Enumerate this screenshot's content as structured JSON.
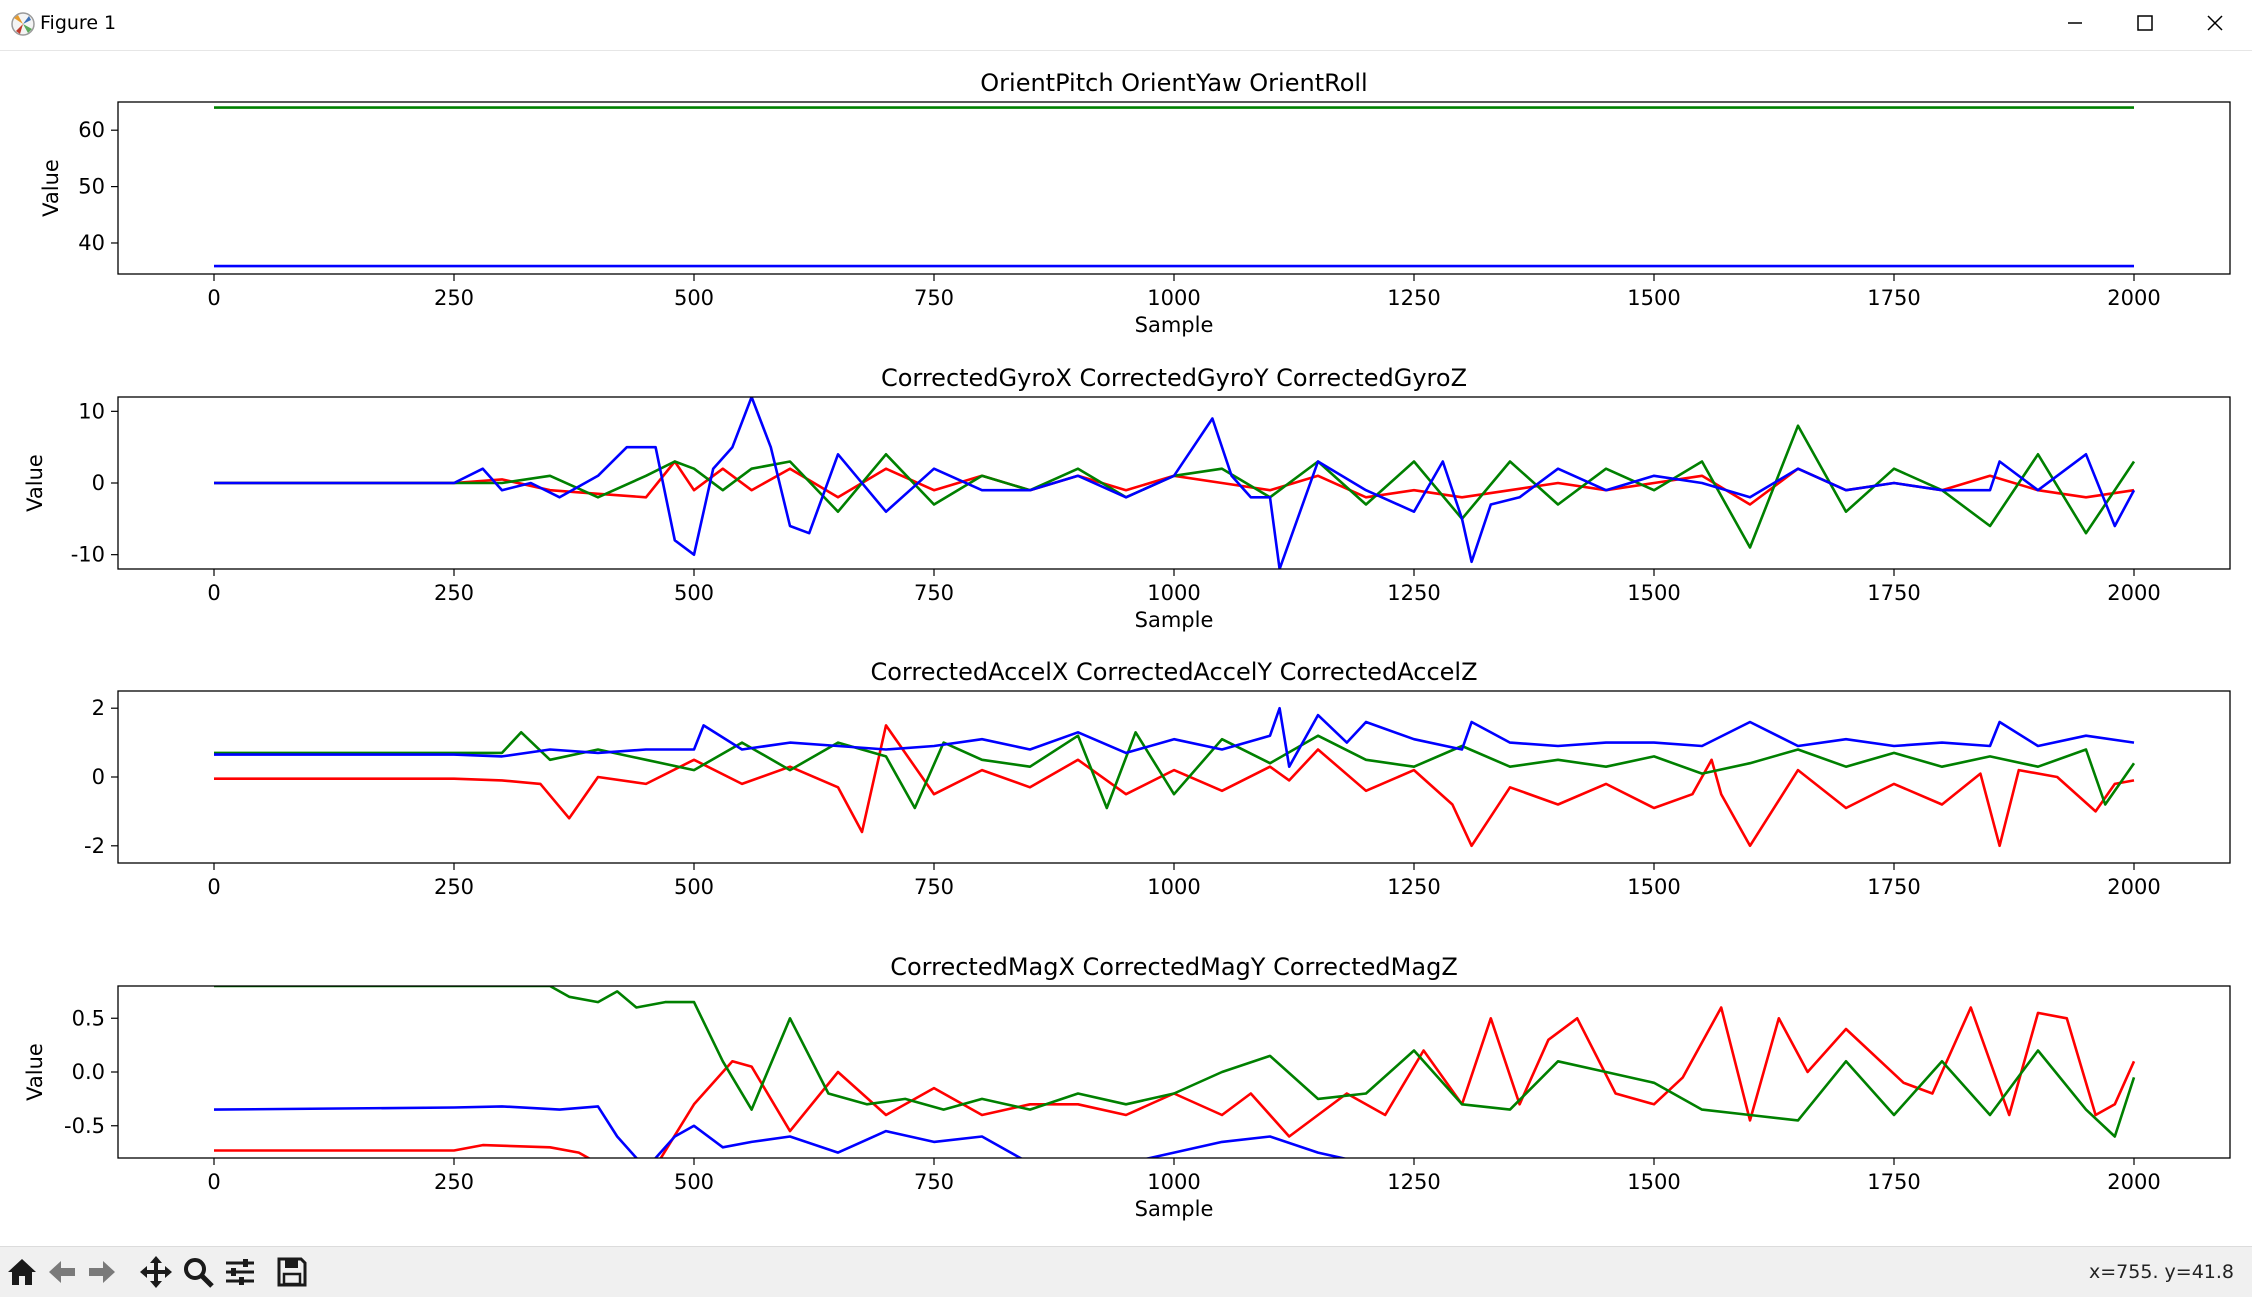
{
  "window": {
    "title": "Figure 1",
    "icon": "matplotlib-logo-icon"
  },
  "toolbar": {
    "tools": [
      "home-icon",
      "back-arrow-icon",
      "forward-arrow-icon",
      "pan-move-icon",
      "zoom-magnifier-icon",
      "configure-subplots-icon",
      "save-floppy-icon"
    ],
    "coordinates": "x=755. y=41.8"
  },
  "colors": {
    "series1": "#ff0000",
    "series2": "#008000",
    "series3": "#0000ff"
  },
  "chart_data": [
    {
      "type": "line",
      "title": "OrientPitch OrientYaw OrientRoll",
      "xlabel": "Sample",
      "ylabel": "Value",
      "xlim": [
        -100,
        2100
      ],
      "ylim": [
        34.5,
        65
      ],
      "xticks": [
        0,
        250,
        500,
        750,
        1000,
        1250,
        1500,
        1750,
        2000
      ],
      "yticks": [
        40,
        50,
        60
      ],
      "series": [
        {
          "color": "#008000",
          "x": [
            0,
            2000
          ],
          "y": [
            64,
            64
          ]
        },
        {
          "color": "#0000ff",
          "x": [
            0,
            2000
          ],
          "y": [
            35.9,
            35.9
          ]
        }
      ]
    },
    {
      "type": "line",
      "title": "CorrectedGyroX CorrectedGyroY CorrectedGyroZ",
      "xlabel": "Sample",
      "ylabel": "Value",
      "xlim": [
        -100,
        2100
      ],
      "ylim": [
        -12,
        12
      ],
      "xticks": [
        0,
        250,
        500,
        750,
        1000,
        1250,
        1500,
        1750,
        2000
      ],
      "yticks": [
        -10,
        0,
        10
      ],
      "series": [
        {
          "color": "#ff0000",
          "x": [
            0,
            250,
            300,
            350,
            400,
            450,
            480,
            500,
            530,
            560,
            600,
            650,
            700,
            750,
            800,
            850,
            900,
            950,
            1000,
            1050,
            1100,
            1150,
            1200,
            1250,
            1300,
            1350,
            1400,
            1450,
            1500,
            1550,
            1600,
            1650,
            1700,
            1750,
            1800,
            1850,
            1900,
            1950,
            2000
          ],
          "y": [
            0,
            0,
            0.5,
            -1,
            -1.5,
            -2,
            3,
            -1,
            2,
            -1,
            2,
            -2,
            2,
            -1,
            1,
            -1,
            1,
            -1,
            1,
            0,
            -1,
            1,
            -2,
            -1,
            -2,
            -1,
            0,
            -1,
            0,
            1,
            -3,
            2,
            -1,
            0,
            -1,
            1,
            -1,
            -2,
            -1
          ]
        },
        {
          "color": "#008000",
          "x": [
            0,
            250,
            300,
            350,
            400,
            450,
            480,
            500,
            530,
            560,
            600,
            650,
            700,
            750,
            800,
            850,
            900,
            950,
            1000,
            1050,
            1100,
            1150,
            1200,
            1250,
            1300,
            1350,
            1400,
            1450,
            1500,
            1550,
            1600,
            1650,
            1700,
            1750,
            1800,
            1850,
            1900,
            1950,
            2000
          ],
          "y": [
            0,
            0,
            0,
            1,
            -2,
            1,
            3,
            2,
            -1,
            2,
            3,
            -4,
            4,
            -3,
            1,
            -1,
            2,
            -2,
            1,
            2,
            -2,
            3,
            -3,
            3,
            -5,
            3,
            -3,
            2,
            -1,
            3,
            -9,
            8,
            -4,
            2,
            -1,
            -6,
            4,
            -7,
            3
          ]
        },
        {
          "color": "#0000ff",
          "x": [
            0,
            250,
            280,
            300,
            330,
            360,
            400,
            430,
            460,
            480,
            500,
            520,
            540,
            560,
            580,
            600,
            620,
            650,
            700,
            750,
            800,
            850,
            900,
            950,
            1000,
            1040,
            1060,
            1080,
            1100,
            1110,
            1150,
            1200,
            1250,
            1280,
            1300,
            1310,
            1330,
            1360,
            1400,
            1450,
            1500,
            1550,
            1600,
            1650,
            1700,
            1750,
            1800,
            1850,
            1860,
            1900,
            1950,
            1980,
            2000
          ],
          "y": [
            0,
            0,
            2,
            -1,
            0,
            -2,
            1,
            5,
            5,
            -8,
            -10,
            2,
            5,
            12,
            5,
            -6,
            -7,
            4,
            -4,
            2,
            -1,
            -1,
            1,
            -2,
            1,
            9,
            1,
            -2,
            -2,
            -12,
            3,
            -1,
            -4,
            3,
            -5,
            -11,
            -3,
            -2,
            2,
            -1,
            1,
            0,
            -2,
            2,
            -1,
            0,
            -1,
            -1,
            3,
            -1,
            4,
            -6,
            -1
          ]
        }
      ]
    },
    {
      "type": "line",
      "title": "CorrectedAccelX CorrectedAccelY CorrectedAccelZ",
      "xlabel": "",
      "ylabel": "",
      "xlim": [
        -100,
        2100
      ],
      "ylim": [
        -2.5,
        2.5
      ],
      "xticks": [
        0,
        250,
        500,
        750,
        1000,
        1250,
        1500,
        1750,
        2000
      ],
      "yticks": [
        -2,
        0,
        2
      ],
      "series": [
        {
          "color": "#ff0000",
          "x": [
            0,
            250,
            300,
            340,
            370,
            400,
            450,
            500,
            550,
            600,
            650,
            675,
            700,
            750,
            800,
            850,
            900,
            950,
            1000,
            1050,
            1100,
            1120,
            1150,
            1200,
            1250,
            1290,
            1310,
            1350,
            1400,
            1450,
            1500,
            1540,
            1560,
            1570,
            1600,
            1650,
            1700,
            1750,
            1800,
            1840,
            1860,
            1880,
            1920,
            1960,
            1980,
            2000
          ],
          "y": [
            -0.05,
            -0.05,
            -0.1,
            -0.2,
            -1.2,
            0,
            -0.2,
            0.5,
            -0.2,
            0.3,
            -0.3,
            -1.6,
            1.5,
            -0.5,
            0.2,
            -0.3,
            0.5,
            -0.5,
            0.2,
            -0.4,
            0.3,
            -0.1,
            0.8,
            -0.4,
            0.2,
            -0.8,
            -2,
            -0.3,
            -0.8,
            -0.2,
            -0.9,
            -0.5,
            0.5,
            -0.5,
            -2,
            0.2,
            -0.9,
            -0.2,
            -0.8,
            0.1,
            -2,
            0.2,
            0,
            -1,
            -0.2,
            -0.1
          ]
        },
        {
          "color": "#008000",
          "x": [
            0,
            250,
            300,
            320,
            350,
            400,
            450,
            500,
            550,
            600,
            650,
            700,
            730,
            760,
            800,
            850,
            900,
            930,
            960,
            1000,
            1050,
            1100,
            1150,
            1200,
            1250,
            1300,
            1350,
            1400,
            1450,
            1500,
            1550,
            1600,
            1650,
            1700,
            1750,
            1800,
            1850,
            1900,
            1950,
            1970,
            2000
          ],
          "y": [
            0.7,
            0.7,
            0.7,
            1.3,
            0.5,
            0.8,
            0.5,
            0.2,
            1,
            0.2,
            1,
            0.6,
            -0.9,
            1,
            0.5,
            0.3,
            1.2,
            -0.9,
            1.3,
            -0.5,
            1.1,
            0.4,
            1.2,
            0.5,
            0.3,
            0.9,
            0.3,
            0.5,
            0.3,
            0.6,
            0.1,
            0.4,
            0.8,
            0.3,
            0.7,
            0.3,
            0.6,
            0.3,
            0.8,
            -0.8,
            0.4
          ]
        },
        {
          "color": "#0000ff",
          "x": [
            0,
            250,
            300,
            350,
            400,
            450,
            500,
            510,
            550,
            600,
            650,
            700,
            750,
            800,
            850,
            900,
            950,
            1000,
            1050,
            1100,
            1110,
            1120,
            1150,
            1180,
            1200,
            1250,
            1300,
            1310,
            1350,
            1400,
            1450,
            1500,
            1550,
            1600,
            1650,
            1700,
            1750,
            1800,
            1850,
            1860,
            1900,
            1950,
            2000
          ],
          "y": [
            0.65,
            0.65,
            0.6,
            0.8,
            0.7,
            0.8,
            0.8,
            1.5,
            0.8,
            1,
            0.9,
            0.8,
            0.9,
            1.1,
            0.8,
            1.3,
            0.7,
            1.1,
            0.8,
            1.2,
            2,
            0.3,
            1.8,
            1,
            1.6,
            1.1,
            0.8,
            1.6,
            1,
            0.9,
            1,
            1,
            0.9,
            1.6,
            0.9,
            1.1,
            0.9,
            1,
            0.9,
            1.6,
            0.9,
            1.2,
            1
          ]
        }
      ]
    },
    {
      "type": "line",
      "title": "CorrectedMagX CorrectedMagY CorrectedMagZ",
      "xlabel": "Sample",
      "ylabel": "Value",
      "xlim": [
        -100,
        2100
      ],
      "ylim": [
        -0.8,
        0.8
      ],
      "xticks": [
        0,
        250,
        500,
        750,
        1000,
        1250,
        1500,
        1750,
        2000
      ],
      "yticks": [
        -0.5,
        0.0,
        0.5
      ],
      "series": [
        {
          "color": "#ff0000",
          "x": [
            0,
            250,
            280,
            350,
            380,
            400,
            420,
            460,
            500,
            540,
            560,
            600,
            650,
            700,
            750,
            800,
            850,
            900,
            950,
            1000,
            1050,
            1080,
            1120,
            1180,
            1220,
            1260,
            1300,
            1330,
            1360,
            1390,
            1420,
            1460,
            1500,
            1530,
            1570,
            1600,
            1630,
            1660,
            1700,
            1760,
            1790,
            1830,
            1870,
            1900,
            1930,
            1960,
            1980,
            2000
          ],
          "y": [
            -0.73,
            -0.73,
            -0.68,
            -0.7,
            -0.75,
            -0.85,
            -0.9,
            -0.88,
            -0.3,
            0.1,
            0.05,
            -0.55,
            0,
            -0.4,
            -0.15,
            -0.4,
            -0.3,
            -0.3,
            -0.4,
            -0.2,
            -0.4,
            -0.2,
            -0.6,
            -0.2,
            -0.4,
            0.2,
            -0.3,
            0.5,
            -0.3,
            0.3,
            0.5,
            -0.2,
            -0.3,
            -0.05,
            0.6,
            -0.45,
            0.5,
            0,
            0.4,
            -0.1,
            -0.2,
            0.6,
            -0.4,
            0.55,
            0.5,
            -0.4,
            -0.3,
            0.1
          ]
        },
        {
          "color": "#008000",
          "x": [
            0,
            350,
            370,
            400,
            420,
            440,
            470,
            500,
            530,
            560,
            600,
            640,
            680,
            720,
            760,
            800,
            850,
            900,
            950,
            1000,
            1050,
            1100,
            1150,
            1200,
            1250,
            1300,
            1350,
            1400,
            1450,
            1500,
            1550,
            1600,
            1650,
            1700,
            1750,
            1800,
            1850,
            1900,
            1950,
            1980,
            2000
          ],
          "y": [
            0.8,
            0.8,
            0.7,
            0.65,
            0.75,
            0.6,
            0.65,
            0.65,
            0.1,
            -0.35,
            0.5,
            -0.2,
            -0.3,
            -0.25,
            -0.35,
            -0.25,
            -0.35,
            -0.2,
            -0.3,
            -0.2,
            0,
            0.15,
            -0.25,
            -0.2,
            0.2,
            -0.3,
            -0.35,
            0.1,
            0,
            -0.1,
            -0.35,
            -0.4,
            -0.45,
            0.1,
            -0.4,
            0.1,
            -0.4,
            0.2,
            -0.35,
            -0.6,
            -0.05
          ]
        },
        {
          "color": "#0000ff",
          "x": [
            0,
            250,
            300,
            360,
            400,
            420,
            450,
            480,
            500,
            530,
            560,
            600,
            650,
            700,
            750,
            800,
            850,
            900,
            950,
            1000,
            1050,
            1100,
            1150,
            1200,
            1250,
            1300,
            1340,
            1600,
            1620,
            1860,
            1880,
            2000
          ],
          "y": [
            -0.35,
            -0.33,
            -0.32,
            -0.35,
            -0.32,
            -0.6,
            -0.9,
            -0.6,
            -0.5,
            -0.7,
            -0.65,
            -0.6,
            -0.75,
            -0.55,
            -0.65,
            -0.6,
            -0.85,
            -0.9,
            -0.85,
            -0.75,
            -0.65,
            -0.6,
            -0.75,
            -0.85,
            -0.9,
            -0.9,
            -0.85,
            -0.9,
            -0.9,
            -0.9,
            -0.9,
            -0.9
          ]
        }
      ]
    }
  ]
}
